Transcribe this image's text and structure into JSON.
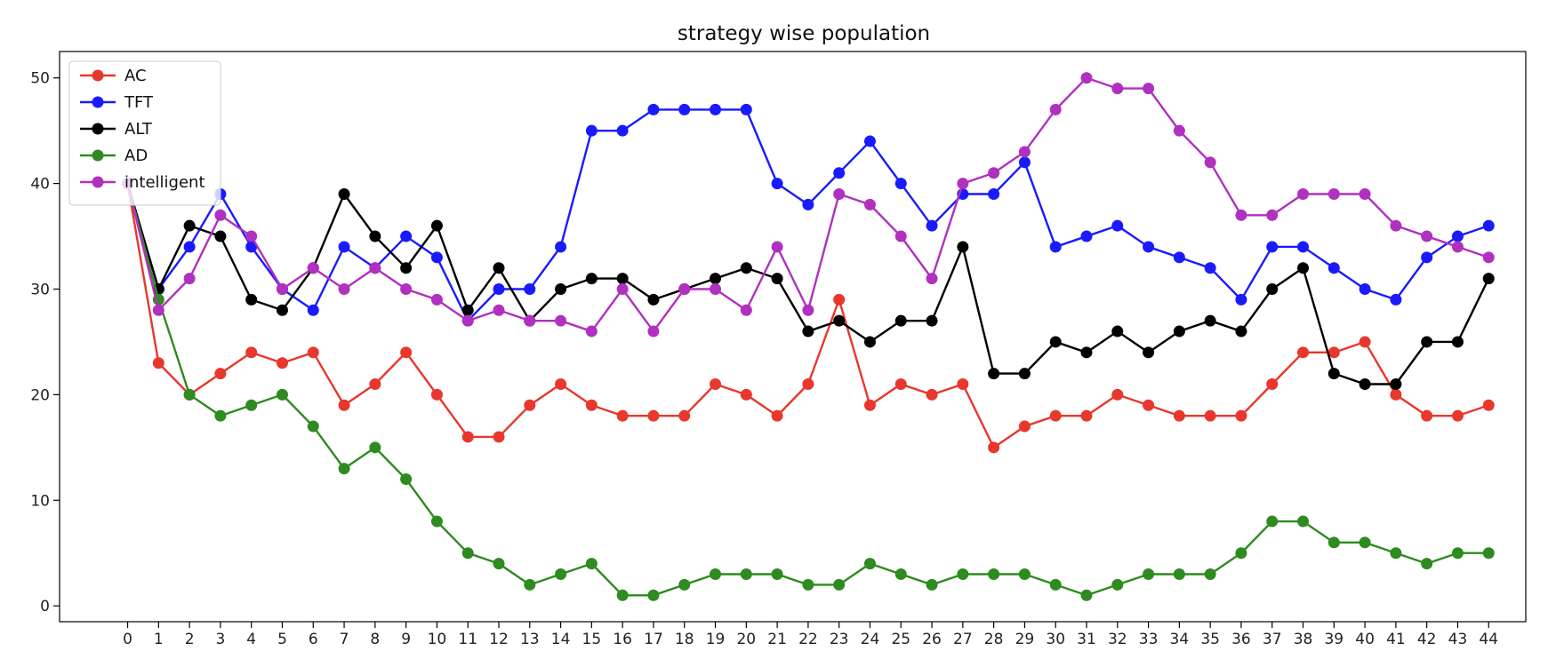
{
  "chart_data": {
    "type": "line",
    "title": "strategy wise population",
    "xlabel": "",
    "ylabel": "",
    "x": [
      0,
      1,
      2,
      3,
      4,
      5,
      6,
      7,
      8,
      9,
      10,
      11,
      12,
      13,
      14,
      15,
      16,
      17,
      18,
      19,
      20,
      21,
      22,
      23,
      24,
      25,
      26,
      27,
      28,
      29,
      30,
      31,
      32,
      33,
      34,
      35,
      36,
      37,
      38,
      39,
      40,
      41,
      42,
      43,
      44
    ],
    "xticks": [
      "0",
      "1",
      "2",
      "3",
      "4",
      "5",
      "6",
      "7",
      "8",
      "9",
      "10",
      "11",
      "12",
      "13",
      "14",
      "15",
      "16",
      "17",
      "18",
      "19",
      "20",
      "21",
      "22",
      "23",
      "24",
      "25",
      "26",
      "27",
      "28",
      "29",
      "30",
      "31",
      "32",
      "33",
      "34",
      "35",
      "36",
      "37",
      "38",
      "39",
      "40",
      "41",
      "42",
      "43",
      "44"
    ],
    "yticks": [
      "0",
      "10",
      "20",
      "30",
      "40",
      "50"
    ],
    "ylim": [
      -1.5,
      52.5
    ],
    "xlim": [
      -2.2,
      45.2
    ],
    "grid": false,
    "legend_position": "upper-left",
    "series": [
      {
        "name": "AC",
        "color": "#e8372c",
        "values": [
          40,
          23,
          20,
          22,
          24,
          23,
          24,
          19,
          21,
          24,
          20,
          16,
          16,
          19,
          21,
          19,
          18,
          18,
          18,
          21,
          20,
          18,
          21,
          29,
          19,
          21,
          20,
          21,
          15,
          17,
          18,
          18,
          20,
          19,
          18,
          18,
          18,
          21,
          24,
          24,
          25,
          20,
          18,
          18,
          19
        ]
      },
      {
        "name": "TFT",
        "color": "#1a1aff",
        "values": [
          40,
          30,
          34,
          39,
          34,
          30,
          28,
          34,
          32,
          35,
          33,
          27,
          30,
          30,
          34,
          45,
          45,
          47,
          47,
          47,
          47,
          40,
          38,
          41,
          44,
          40,
          36,
          39,
          39,
          42,
          34,
          35,
          36,
          34,
          33,
          32,
          29,
          34,
          34,
          32,
          30,
          29,
          33,
          35,
          36
        ]
      },
      {
        "name": "ALT",
        "color": "#000000",
        "values": [
          40,
          30,
          36,
          35,
          29,
          28,
          32,
          39,
          35,
          32,
          36,
          28,
          32,
          27,
          30,
          31,
          31,
          29,
          30,
          31,
          32,
          31,
          26,
          27,
          25,
          27,
          27,
          34,
          22,
          22,
          25,
          24,
          26,
          24,
          26,
          27,
          26,
          30,
          32,
          22,
          21,
          21,
          25,
          25,
          31
        ]
      },
      {
        "name": "AD",
        "color": "#2e8b1f",
        "values": [
          40,
          29,
          20,
          18,
          19,
          20,
          17,
          13,
          15,
          12,
          8,
          5,
          4,
          2,
          3,
          4,
          1,
          1,
          2,
          3,
          3,
          3,
          2,
          2,
          4,
          3,
          2,
          3,
          3,
          3,
          2,
          1,
          2,
          3,
          3,
          3,
          5,
          8,
          8,
          6,
          6,
          5,
          4,
          5,
          5
        ]
      },
      {
        "name": "intelligent",
        "color": "#b030c0",
        "values": [
          40,
          28,
          31,
          37,
          35,
          30,
          32,
          30,
          32,
          30,
          29,
          27,
          28,
          27,
          27,
          26,
          30,
          26,
          30,
          30,
          28,
          34,
          28,
          39,
          38,
          35,
          31,
          40,
          41,
          43,
          47,
          50,
          49,
          49,
          45,
          42,
          37,
          37,
          39,
          39,
          39,
          36,
          35,
          34,
          33
        ]
      }
    ]
  }
}
